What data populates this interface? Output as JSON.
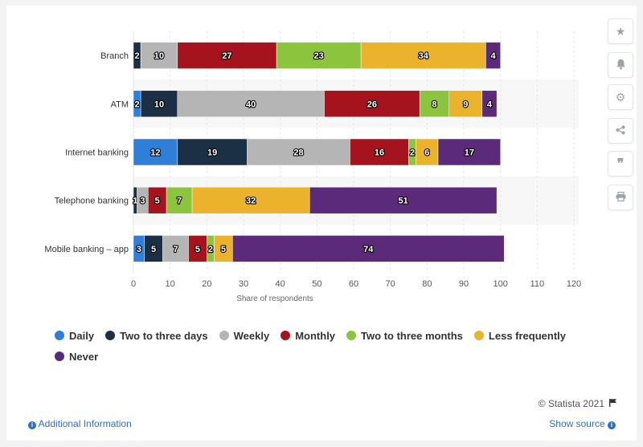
{
  "chart_data": {
    "type": "bar",
    "orientation": "horizontal",
    "stacked": true,
    "categories": [
      "Branch",
      "ATM",
      "Internet banking",
      "Telephone banking",
      "Mobile banking – app"
    ],
    "series": [
      {
        "name": "Daily",
        "color": "#2f7ed8",
        "values": [
          0,
          2,
          12,
          0,
          3
        ]
      },
      {
        "name": "Two to three days",
        "color": "#1b2f45",
        "values": [
          2,
          10,
          19,
          1,
          5
        ]
      },
      {
        "name": "Weekly",
        "color": "#b5b5b5",
        "values": [
          10,
          40,
          28,
          3,
          7
        ]
      },
      {
        "name": "Monthly",
        "color": "#a5141c",
        "values": [
          27,
          26,
          16,
          5,
          5
        ]
      },
      {
        "name": "Two to three months",
        "color": "#8cc43d",
        "values": [
          23,
          8,
          2,
          7,
          2
        ]
      },
      {
        "name": "Less frequently",
        "color": "#eab32b",
        "values": [
          34,
          9,
          6,
          32,
          5
        ]
      },
      {
        "name": "Never",
        "color": "#5c2a7a",
        "values": [
          4,
          4,
          17,
          51,
          74
        ]
      }
    ],
    "xlabel": "Share of respondents",
    "ylabel": "",
    "xlim": [
      0,
      120
    ],
    "xticks": [
      0,
      10,
      20,
      30,
      40,
      50,
      60,
      70,
      80,
      90,
      100,
      110,
      120
    ],
    "grid": true,
    "legend_position": "bottom"
  },
  "footer": {
    "credit": "© Statista 2021",
    "additional_info": "Additional Information",
    "show_source": "Show source"
  },
  "sidebar": {
    "icons": [
      "star-icon",
      "bell-icon",
      "gear-icon",
      "share-icon",
      "quote-icon",
      "print-icon"
    ]
  }
}
